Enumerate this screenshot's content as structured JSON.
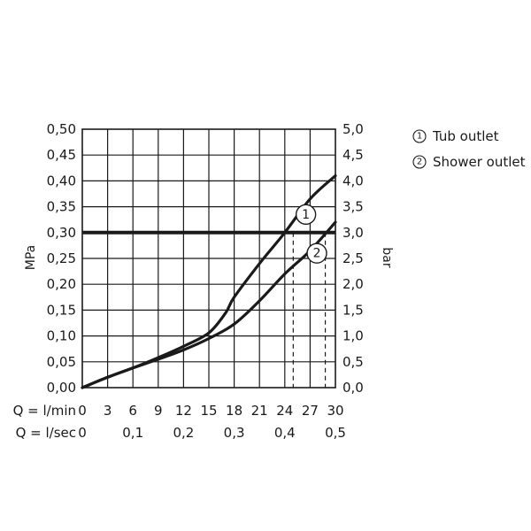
{
  "chart_data": {
    "type": "line",
    "x_primary": {
      "label": "Q = l/min",
      "ticks": [
        "0",
        "3",
        "6",
        "9",
        "12",
        "15",
        "18",
        "21",
        "24",
        "27",
        "30"
      ],
      "range": [
        0,
        30
      ]
    },
    "x_secondary": {
      "label": "Q = l/sec",
      "ticks": [
        "0",
        "0,1",
        "0,2",
        "0,3",
        "0,4",
        "0,5"
      ]
    },
    "y_left": {
      "label": "MPa",
      "ticks": [
        "0,00",
        "0,05",
        "0,10",
        "0,15",
        "0,20",
        "0,25",
        "0,30",
        "0,35",
        "0,40",
        "0,45",
        "0,50"
      ],
      "range": [
        0,
        0.5
      ]
    },
    "y_right": {
      "label": "bar",
      "ticks": [
        "0,0",
        "0,5",
        "1,0",
        "1,5",
        "2,0",
        "2,5",
        "3,0",
        "3,5",
        "4,0",
        "4,5",
        "5,0"
      ],
      "range": [
        0,
        5
      ]
    },
    "grid": true,
    "reference_line": {
      "y": 0.3
    },
    "series": [
      {
        "name": "Tub outlet",
        "marker": "1",
        "marker_at": {
          "x": 26.5,
          "y": 0.335
        },
        "drop_line_x": 25.0,
        "points": [
          [
            0,
            0
          ],
          [
            3,
            0.02
          ],
          [
            6,
            0.038
          ],
          [
            9,
            0.058
          ],
          [
            12,
            0.08
          ],
          [
            15,
            0.106
          ],
          [
            17,
            0.145
          ],
          [
            18,
            0.175
          ],
          [
            21,
            0.24
          ],
          [
            24,
            0.3
          ],
          [
            27,
            0.365
          ],
          [
            30,
            0.41
          ]
        ]
      },
      {
        "name": "Shower outlet",
        "marker": "2",
        "marker_at": {
          "x": 27.8,
          "y": 0.26
        },
        "drop_line_x": 28.8,
        "points": [
          [
            0,
            0
          ],
          [
            3,
            0.02
          ],
          [
            6,
            0.038
          ],
          [
            9,
            0.055
          ],
          [
            12,
            0.073
          ],
          [
            15,
            0.095
          ],
          [
            18,
            0.123
          ],
          [
            21,
            0.168
          ],
          [
            24,
            0.22
          ],
          [
            27,
            0.265
          ],
          [
            30,
            0.32
          ]
        ]
      }
    ],
    "legend": [
      {
        "symbol": "1",
        "label": "Tub outlet"
      },
      {
        "symbol": "2",
        "label": "Shower outlet"
      }
    ],
    "legend_position": "top-right"
  }
}
